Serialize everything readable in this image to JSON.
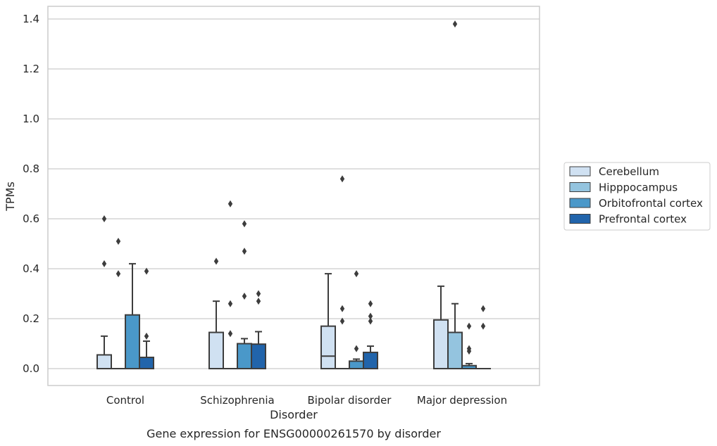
{
  "chart_data": {
    "type": "box",
    "xlabel": "Disorder",
    "ylabel": "TPMs",
    "caption": "Gene expression for ENSG00000261570 by disorder",
    "categories": [
      "Control",
      "Schizophrenia",
      "Bipolar disorder",
      "Major depression"
    ],
    "ylim": [
      -0.07,
      1.45
    ],
    "yticks": [
      "0.0",
      "0.2",
      "0.4",
      "0.6",
      "0.8",
      "1.0",
      "1.2",
      "1.4"
    ],
    "grid": true,
    "legend_position": "right",
    "series": [
      {
        "name": "Cerebellum",
        "color": "#d0e1f2",
        "boxes": [
          {
            "q1": 0.0,
            "median": 0.0,
            "q3": 0.055,
            "whisker_low": 0.0,
            "whisker_high": 0.13,
            "outliers": [
              0.42,
              0.6
            ]
          },
          {
            "q1": 0.0,
            "median": 0.0,
            "q3": 0.145,
            "whisker_low": 0.0,
            "whisker_high": 0.27,
            "outliers": [
              0.43
            ]
          },
          {
            "q1": 0.0,
            "median": 0.05,
            "q3": 0.17,
            "whisker_low": 0.0,
            "whisker_high": 0.38,
            "outliers": []
          },
          {
            "q1": 0.0,
            "median": 0.0,
            "q3": 0.195,
            "whisker_low": 0.0,
            "whisker_high": 0.33,
            "outliers": []
          }
        ]
      },
      {
        "name": "Hipppocampus",
        "color": "#94c4df",
        "boxes": [
          {
            "q1": 0.0,
            "median": 0.0,
            "q3": 0.0,
            "whisker_low": 0.0,
            "whisker_high": 0.0,
            "outliers": [
              0.38,
              0.51
            ]
          },
          {
            "q1": 0.0,
            "median": 0.0,
            "q3": 0.0,
            "whisker_low": 0.0,
            "whisker_high": 0.0,
            "outliers": [
              0.14,
              0.26,
              0.66
            ]
          },
          {
            "q1": 0.0,
            "median": 0.0,
            "q3": 0.0,
            "whisker_low": 0.0,
            "whisker_high": 0.0,
            "outliers": [
              0.19,
              0.24,
              0.76
            ]
          },
          {
            "q1": 0.0,
            "median": 0.0,
            "q3": 0.145,
            "whisker_low": 0.0,
            "whisker_high": 0.26,
            "outliers": [
              1.38
            ]
          }
        ]
      },
      {
        "name": "Orbitofrontal cortex",
        "color": "#4a98c9",
        "boxes": [
          {
            "q1": 0.0,
            "median": 0.0,
            "q3": 0.215,
            "whisker_low": 0.0,
            "whisker_high": 0.42,
            "outliers": []
          },
          {
            "q1": 0.0,
            "median": 0.1,
            "q3": 0.1,
            "whisker_low": 0.0,
            "whisker_high": 0.12,
            "outliers": [
              0.29,
              0.47,
              0.58
            ]
          },
          {
            "q1": 0.0,
            "median": 0.0,
            "q3": 0.03,
            "whisker_low": 0.0,
            "whisker_high": 0.038,
            "outliers": [
              0.08,
              0.38
            ]
          },
          {
            "q1": 0.0,
            "median": 0.0,
            "q3": 0.012,
            "whisker_low": 0.0,
            "whisker_high": 0.02,
            "outliers": [
              0.07,
              0.08,
              0.17
            ]
          }
        ]
      },
      {
        "name": "Prefrontal cortex",
        "color": "#2164ab",
        "boxes": [
          {
            "q1": 0.0,
            "median": 0.0,
            "q3": 0.045,
            "whisker_low": 0.0,
            "whisker_high": 0.11,
            "outliers": [
              0.13,
              0.39
            ]
          },
          {
            "q1": 0.0,
            "median": 0.0,
            "q3": 0.098,
            "whisker_low": 0.0,
            "whisker_high": 0.148,
            "outliers": [
              0.27,
              0.3
            ]
          },
          {
            "q1": 0.0,
            "median": 0.0,
            "q3": 0.065,
            "whisker_low": 0.0,
            "whisker_high": 0.09,
            "outliers": [
              0.19,
              0.21,
              0.26
            ]
          },
          {
            "q1": 0.0,
            "median": 0.0,
            "q3": 0.0,
            "whisker_low": 0.0,
            "whisker_high": 0.0,
            "outliers": [
              0.17,
              0.24
            ]
          }
        ]
      }
    ]
  }
}
